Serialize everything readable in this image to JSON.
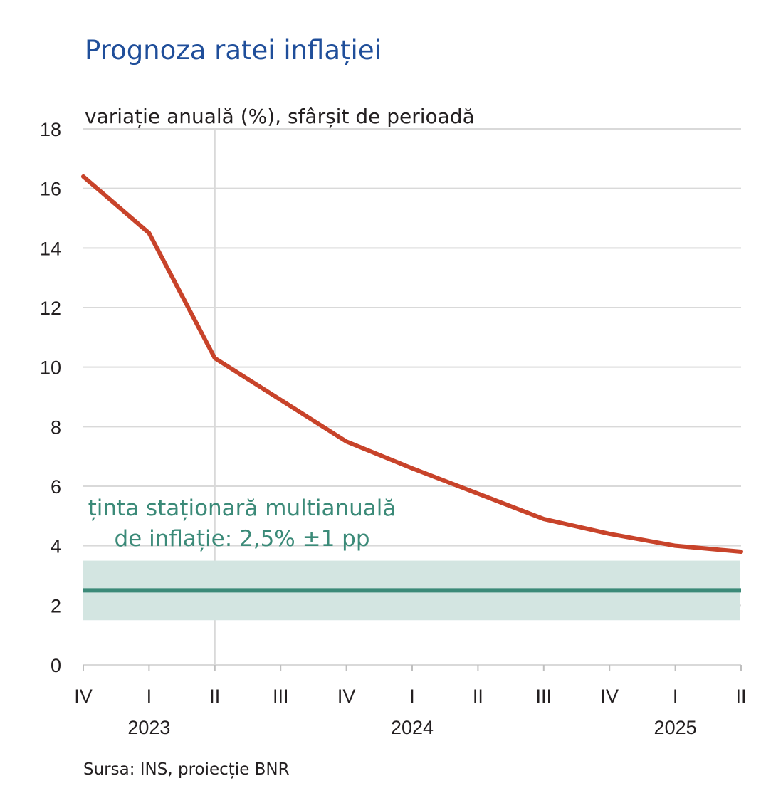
{
  "chart_data": {
    "type": "line",
    "title": "Prognoza ratei inflației",
    "subtitle": "variație anuală (%), sfârșit de perioadă",
    "categories": [
      "IV",
      "I",
      "II",
      "III",
      "IV",
      "I",
      "II",
      "III",
      "IV",
      "I",
      "II"
    ],
    "years": [
      {
        "label": "2023",
        "from_index": 1,
        "to_index": 1
      },
      {
        "label": "2024",
        "from_index": 5,
        "to_index": 5
      },
      {
        "label": "2025",
        "from_index": 9,
        "to_index": 9
      }
    ],
    "series": [
      {
        "values": [
          16.4,
          14.5,
          10.3,
          8.9,
          7.5,
          6.6,
          5.75,
          4.9,
          4.4,
          4.0,
          3.8
        ],
        "color": "#c8432a"
      }
    ],
    "target": {
      "label_line1": "ținta staționară multianuală",
      "label_line2": "de inflație: 2,5% ±1 pp",
      "center": 2.5,
      "lower": 1.5,
      "upper": 3.5,
      "line_color": "#3b8a78",
      "band_color": "#d3e5e1"
    },
    "forecast_start_index": 2,
    "ylim": [
      0,
      18
    ],
    "yticks": [
      "0",
      "2",
      "4",
      "6",
      "8",
      "10",
      "12",
      "14",
      "16",
      "18"
    ],
    "grid": true,
    "source": "Sursa: INS, proiecție BNR"
  }
}
